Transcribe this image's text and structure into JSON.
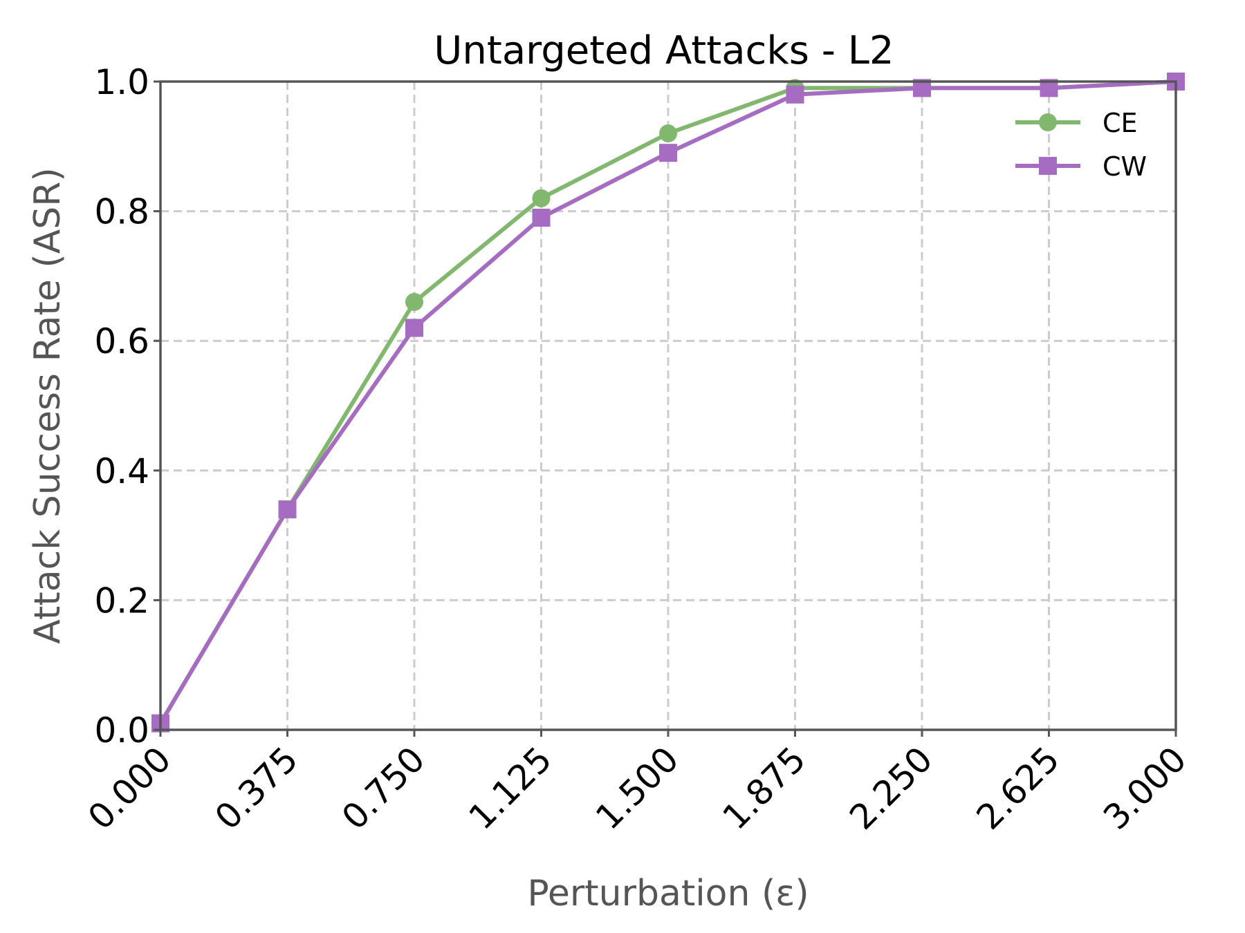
{
  "chart_data": {
    "type": "line",
    "title": "Untargeted Attacks - L2",
    "xlabel": "Perturbation (ε)",
    "ylabel": "Attack Success Rate (ASR)",
    "xlim": [
      0,
      3
    ],
    "ylim": [
      0,
      1
    ],
    "x_ticks": [
      "0.000",
      "0.375",
      "0.750",
      "1.125",
      "1.500",
      "1.875",
      "2.250",
      "2.625",
      "3.000"
    ],
    "y_ticks": [
      "0.0",
      "0.2",
      "0.4",
      "0.6",
      "0.8",
      "1.0"
    ],
    "grid": true,
    "legend_position": "top-right",
    "x": [
      0.0,
      0.375,
      0.75,
      1.125,
      1.5,
      1.875,
      2.25,
      2.625,
      3.0
    ],
    "series": [
      {
        "name": "CE",
        "color": "#82b86e",
        "marker": "circle",
        "values": [
          0.01,
          0.34,
          0.66,
          0.82,
          0.92,
          0.99,
          0.99,
          0.99,
          1.0
        ]
      },
      {
        "name": "CW",
        "color": "#a56cc1",
        "marker": "square",
        "values": [
          0.01,
          0.34,
          0.62,
          0.79,
          0.89,
          0.98,
          0.99,
          0.99,
          1.0
        ]
      }
    ]
  }
}
